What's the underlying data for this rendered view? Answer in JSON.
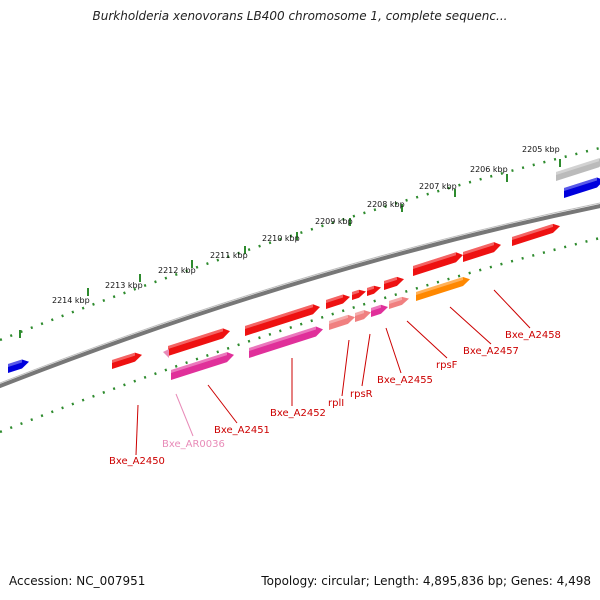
{
  "title": "Burkholderia xenovorans LB400 chromosome 1, complete sequenc...",
  "footer": {
    "accession_label": "Accession:",
    "accession": "NC_007951",
    "topology_label": "Topology:",
    "topology": "circular",
    "length_label": "Length:",
    "length": "4,895,836 bp",
    "genes_label": "Genes:",
    "genes": "4,498"
  },
  "scale": {
    "unit": "kbp",
    "ticks": [
      "2205 kbp",
      "2206 kbp",
      "2207 kbp",
      "2208 kbp",
      "2209 kbp",
      "2210 kbp",
      "2211 kbp",
      "2212 kbp",
      "2213 kbp",
      "2214 kbp"
    ]
  },
  "colors": {
    "gene_red": "#ee1111",
    "gene_pink_light": "#f08080",
    "gene_magenta": "#e0309a",
    "gene_orange": "#ff8800",
    "gene_blue": "#0000dd",
    "gene_gray": "#bbbbbb",
    "backbone": "#888888",
    "scale_ticks": "#2e8b2e",
    "label_red": "#cc0000",
    "label_pink": "#e88bb8"
  },
  "gene_labels": [
    {
      "id": "Bxe_A2450",
      "text": "Bxe_A2450",
      "color": "red"
    },
    {
      "id": "Bxe_AR0036",
      "text": "Bxe_AR0036",
      "color": "pink"
    },
    {
      "id": "Bxe_A2451",
      "text": "Bxe_A2451",
      "color": "red"
    },
    {
      "id": "Bxe_A2452",
      "text": "Bxe_A2452",
      "color": "red"
    },
    {
      "id": "rplI",
      "text": "rplI",
      "color": "red"
    },
    {
      "id": "rpsR",
      "text": "rpsR",
      "color": "red"
    },
    {
      "id": "Bxe_A2455",
      "text": "Bxe_A2455",
      "color": "red"
    },
    {
      "id": "rpsF",
      "text": "rpsF",
      "color": "red"
    },
    {
      "id": "Bxe_A2457",
      "text": "Bxe_A2457",
      "color": "red"
    },
    {
      "id": "Bxe_A2458",
      "text": "Bxe_A2458",
      "color": "red"
    }
  ]
}
